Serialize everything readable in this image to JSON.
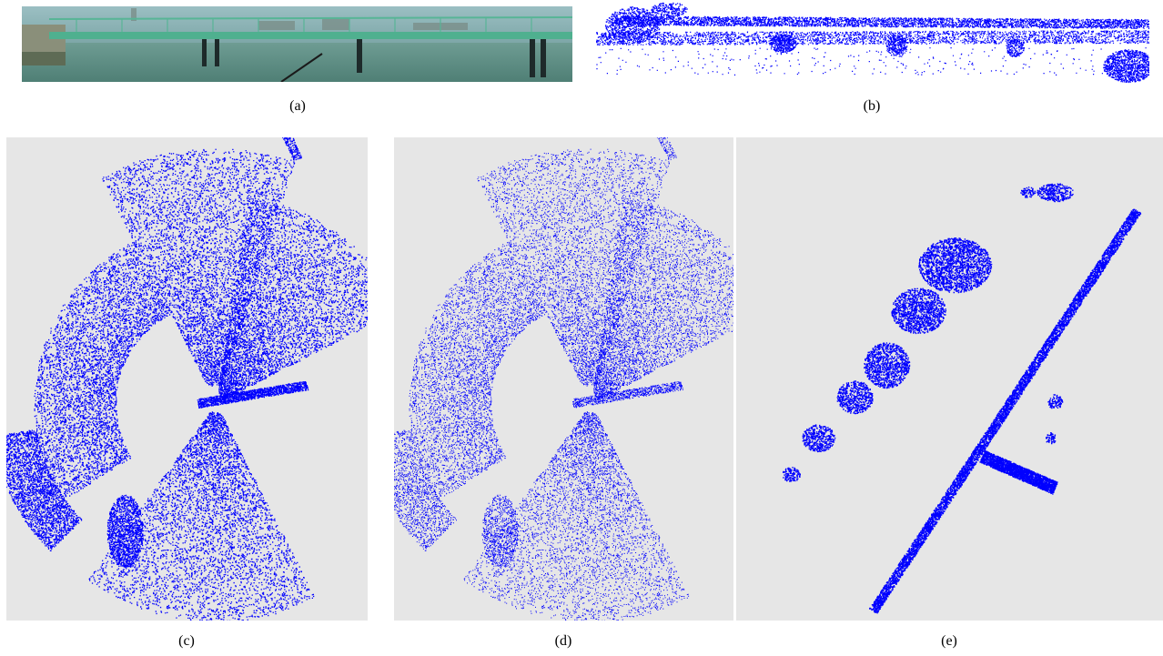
{
  "figure": {
    "panels": [
      {
        "id": "a",
        "label": "(a)",
        "content": "photo"
      },
      {
        "id": "b",
        "label": "(b)",
        "content": "point-cloud-side"
      },
      {
        "id": "c",
        "label": "(c)",
        "content": "point-cloud-top"
      },
      {
        "id": "d",
        "label": "(d)",
        "content": "point-cloud-top"
      },
      {
        "id": "e",
        "label": "(e)",
        "content": "point-cloud-top"
      }
    ],
    "colors": {
      "points": "#0000ff",
      "plot_background": "#e6e6e6",
      "water": "#5f8f86",
      "sky": "#8fb3b8",
      "bridge": "#4aa88a"
    }
  }
}
